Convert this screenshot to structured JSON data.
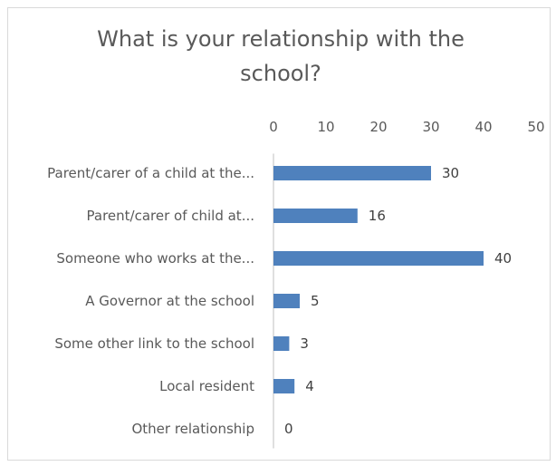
{
  "chart_data": {
    "type": "bar",
    "orientation": "horizontal",
    "title": "What is your relationship with the school?",
    "categories": [
      "Parent/carer of a child at the...",
      "Parent/carer of child at...",
      "Someone who works at the...",
      "A Governor at the school",
      "Some other link to the school",
      "Local resident",
      "Other relationship"
    ],
    "values": [
      30,
      16,
      40,
      5,
      3,
      4,
      0
    ],
    "xlim": [
      0,
      50
    ],
    "xticks": [
      "0",
      "10",
      "20",
      "30",
      "40",
      "50"
    ],
    "x_axis_position": "top",
    "grid": false,
    "legend": "none",
    "bar_color": "#4f81bd",
    "data_labels": true
  }
}
